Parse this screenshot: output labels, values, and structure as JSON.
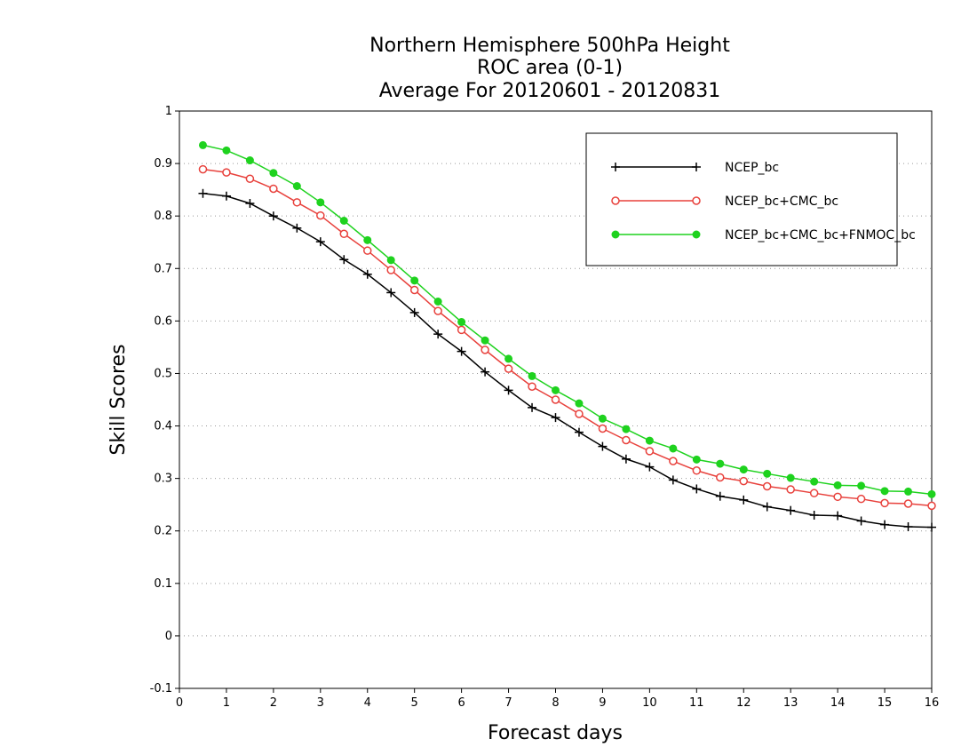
{
  "chart_data": {
    "type": "line",
    "title": [
      "Northern Hemisphere 500hPa Height",
      "ROC area (0-1)",
      "Average For 20120601 - 20120831"
    ],
    "xlabel": "Forecast days",
    "ylabel": "Skill Scores",
    "xlim": [
      0,
      16
    ],
    "ylim": [
      -0.1,
      1
    ],
    "xticks": [
      0,
      1,
      2,
      3,
      4,
      5,
      6,
      7,
      8,
      9,
      10,
      11,
      12,
      13,
      14,
      15,
      16
    ],
    "yticks": [
      -0.1,
      0,
      0.1,
      0.2,
      0.3,
      0.4,
      0.5,
      0.6,
      0.7,
      0.8,
      0.9,
      1
    ],
    "ytick_labels": [
      "-0.1",
      "0",
      "0.1",
      "0.2",
      "0.3",
      "0.4",
      "0.5",
      "0.6",
      "0.7",
      "0.8",
      "0.9",
      "1"
    ],
    "grid": "horizontal-dotted",
    "legend_position": "top-right",
    "x": [
      0.5,
      1,
      1.5,
      2,
      2.5,
      3,
      3.5,
      4,
      4.5,
      5,
      5.5,
      6,
      6.5,
      7,
      7.5,
      8,
      8.5,
      9,
      9.5,
      10,
      10.5,
      11,
      11.5,
      12,
      12.5,
      13,
      13.5,
      14,
      14.5,
      15,
      15.5,
      16
    ],
    "series": [
      {
        "name": "NCEP_bc",
        "color": "#000000",
        "marker": "plus",
        "values": [
          0.843,
          0.838,
          0.824,
          0.8,
          0.777,
          0.751,
          0.717,
          0.689,
          0.654,
          0.616,
          0.575,
          0.542,
          0.503,
          0.468,
          0.435,
          0.416,
          0.388,
          0.361,
          0.337,
          0.322,
          0.297,
          0.28,
          0.266,
          0.259,
          0.246,
          0.239,
          0.23,
          0.229,
          0.219,
          0.212,
          0.208,
          0.207
        ]
      },
      {
        "name": "NCEP_bc+CMC_bc",
        "color": "#e8413c",
        "marker": "open-circle",
        "values": [
          0.889,
          0.883,
          0.871,
          0.852,
          0.826,
          0.801,
          0.766,
          0.734,
          0.697,
          0.659,
          0.619,
          0.583,
          0.545,
          0.509,
          0.475,
          0.45,
          0.423,
          0.395,
          0.373,
          0.352,
          0.333,
          0.315,
          0.302,
          0.295,
          0.285,
          0.279,
          0.272,
          0.265,
          0.261,
          0.253,
          0.252,
          0.248
        ]
      },
      {
        "name": "NCEP_bc+CMC_bc+FNMOC_bc",
        "color": "#1ed21e",
        "marker": "filled-circle",
        "values": [
          0.935,
          0.925,
          0.906,
          0.882,
          0.857,
          0.826,
          0.791,
          0.754,
          0.716,
          0.677,
          0.637,
          0.598,
          0.563,
          0.528,
          0.495,
          0.468,
          0.443,
          0.414,
          0.394,
          0.372,
          0.357,
          0.336,
          0.328,
          0.317,
          0.309,
          0.301,
          0.294,
          0.287,
          0.286,
          0.276,
          0.275,
          0.27
        ]
      }
    ]
  }
}
